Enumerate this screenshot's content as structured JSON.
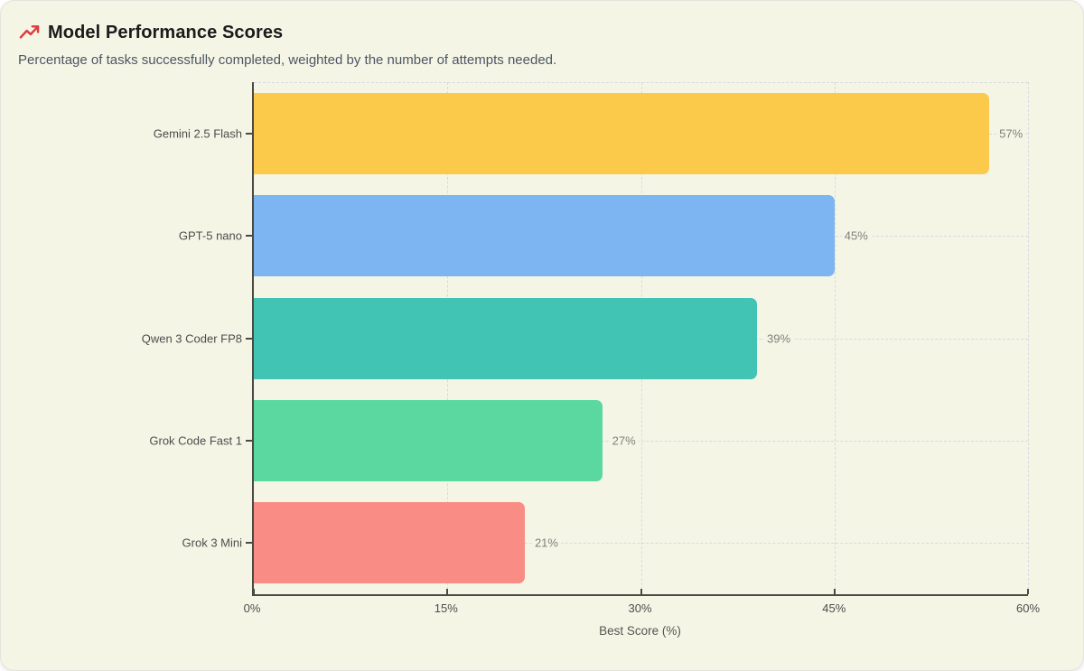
{
  "header": {
    "title": "Model Performance Scores",
    "subtitle": "Percentage of tasks successfully completed, weighted by the number of attempts needed.",
    "icon": "trending-up-icon"
  },
  "chart_data": {
    "type": "bar",
    "orientation": "horizontal",
    "title": "Model Performance Scores",
    "subtitle": "Percentage of tasks successfully completed, weighted by the number of attempts needed.",
    "categories": [
      "Gemini 2.5 Flash",
      "GPT-5 nano",
      "Qwen 3 Coder FP8",
      "Grok Code Fast 1",
      "Grok 3 Mini"
    ],
    "values": [
      57,
      45,
      39,
      27,
      21
    ],
    "value_labels": [
      "57%",
      "45%",
      "39%",
      "27%",
      "21%"
    ],
    "bar_colors": [
      "#FBCA4B",
      "#7CB5F1",
      "#41C4B3",
      "#5BD8A0",
      "#F98D86"
    ],
    "xlabel": "Best Score (%)",
    "ylabel": "",
    "xlim": [
      0,
      60
    ],
    "x_ticks": [
      0,
      15,
      30,
      45,
      60
    ],
    "x_tick_labels": [
      "0%",
      "15%",
      "30%",
      "45%",
      "60%"
    ],
    "grid": "dashed",
    "legend_position": "none"
  },
  "colors": {
    "card_background": "#F5F5E6",
    "icon_red": "#E03A3A",
    "axis": "#4A4A42",
    "gridline": "#D7D9E0",
    "value_label_text": "#80807A"
  }
}
